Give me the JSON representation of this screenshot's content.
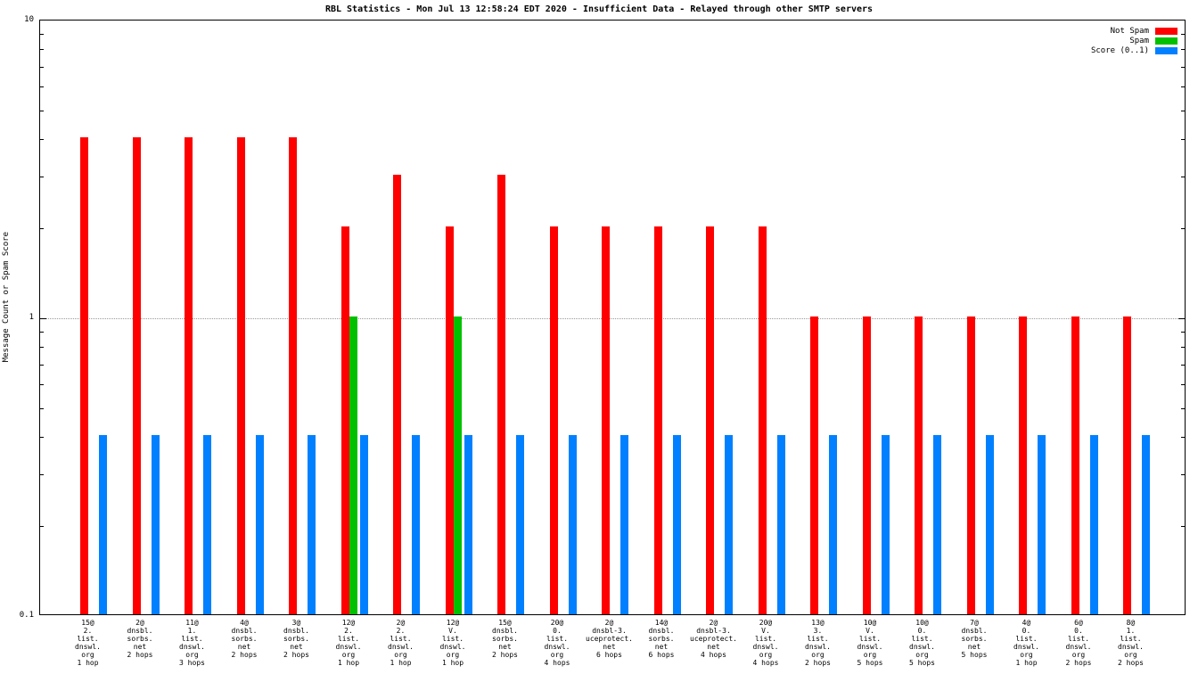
{
  "chart_data": {
    "type": "bar",
    "title": "RBL Statistics - Mon Jul 13 12:58:24 EDT 2020 - Insufficient Data - Relayed through other SMTP servers",
    "ylabel": "Message Count or Spam Score",
    "yscale": "log",
    "ylim": [
      0.1,
      10
    ],
    "yticks": [
      {
        "value": 10,
        "label": "10"
      },
      {
        "value": 1,
        "label": "1"
      },
      {
        "value": 0.1,
        "label": "0.1"
      }
    ],
    "grid_values": [
      1
    ],
    "legend": [
      {
        "label": "Not Spam",
        "color": "#ff0000",
        "series": "not_spam"
      },
      {
        "label": "Spam",
        "color": "#00c000",
        "series": "spam"
      },
      {
        "label": "Score (0..1)",
        "color": "#0080ff",
        "series": "score"
      }
    ],
    "colors": {
      "not_spam": "#ff0000",
      "spam": "#00c000",
      "score": "#0080ff"
    },
    "groups": [
      {
        "label_lines": [
          "15@",
          "2.",
          "list.",
          "dnswl.",
          "org",
          "1 hop"
        ],
        "not_spam": 4,
        "spam": 0,
        "score": 0.4
      },
      {
        "label_lines": [
          "2@",
          "dnsbl.",
          "sorbs.",
          "net",
          "2 hops"
        ],
        "not_spam": 4,
        "spam": 0,
        "score": 0.4
      },
      {
        "label_lines": [
          "11@",
          "1.",
          "list.",
          "dnswl.",
          "org",
          "3 hops"
        ],
        "not_spam": 4,
        "spam": 0,
        "score": 0.4
      },
      {
        "label_lines": [
          "4@",
          "dnsbl.",
          "sorbs.",
          "net",
          "2 hops"
        ],
        "not_spam": 4,
        "spam": 0,
        "score": 0.4
      },
      {
        "label_lines": [
          "3@",
          "dnsbl.",
          "sorbs.",
          "net",
          "2 hops"
        ],
        "not_spam": 4,
        "spam": 0,
        "score": 0.4
      },
      {
        "label_lines": [
          "12@",
          "2.",
          "list.",
          "dnswl.",
          "org",
          "1 hop"
        ],
        "not_spam": 2,
        "spam": 1,
        "score": 0.4
      },
      {
        "label_lines": [
          "2@",
          "2.",
          "list.",
          "dnswl.",
          "org",
          "1 hop"
        ],
        "not_spam": 3,
        "spam": 0,
        "score": 0.4
      },
      {
        "label_lines": [
          "12@",
          "V.",
          "list.",
          "dnswl.",
          "org",
          "1 hop"
        ],
        "not_spam": 2,
        "spam": 1,
        "score": 0.4
      },
      {
        "label_lines": [
          "15@",
          "dnsbl.",
          "sorbs.",
          "net",
          "2 hops"
        ],
        "not_spam": 3,
        "spam": 0,
        "score": 0.4
      },
      {
        "label_lines": [
          "20@",
          "0.",
          "list.",
          "dnswl.",
          "org",
          "4 hops"
        ],
        "not_spam": 2,
        "spam": 0,
        "score": 0.4
      },
      {
        "label_lines": [
          "2@",
          "dnsbl-3.",
          "uceprotect.",
          "net",
          "6 hops"
        ],
        "not_spam": 2,
        "spam": 0,
        "score": 0.4
      },
      {
        "label_lines": [
          "14@",
          "dnsbl.",
          "sorbs.",
          "net",
          "6 hops"
        ],
        "not_spam": 2,
        "spam": 0,
        "score": 0.4
      },
      {
        "label_lines": [
          "2@",
          "dnsbl-3.",
          "uceprotect.",
          "net",
          "4 hops"
        ],
        "not_spam": 2,
        "spam": 0,
        "score": 0.4
      },
      {
        "label_lines": [
          "20@",
          "V.",
          "list.",
          "dnswl.",
          "org",
          "4 hops"
        ],
        "not_spam": 2,
        "spam": 0,
        "score": 0.4
      },
      {
        "label_lines": [
          "13@",
          "3.",
          "list.",
          "dnswl.",
          "org",
          "2 hops"
        ],
        "not_spam": 1,
        "spam": 0,
        "score": 0.4
      },
      {
        "label_lines": [
          "10@",
          "V.",
          "list.",
          "dnswl.",
          "org",
          "5 hops"
        ],
        "not_spam": 1,
        "spam": 0,
        "score": 0.4
      },
      {
        "label_lines": [
          "10@",
          "0.",
          "list.",
          "dnswl.",
          "org",
          "5 hops"
        ],
        "not_spam": 1,
        "spam": 0,
        "score": 0.4
      },
      {
        "label_lines": [
          "7@",
          "dnsbl.",
          "sorbs.",
          "net",
          "5 hops"
        ],
        "not_spam": 1,
        "spam": 0,
        "score": 0.4
      },
      {
        "label_lines": [
          "4@",
          "0.",
          "list.",
          "dnswl.",
          "org",
          "1 hop"
        ],
        "not_spam": 1,
        "spam": 0,
        "score": 0.4
      },
      {
        "label_lines": [
          "6@",
          "0.",
          "list.",
          "dnswl.",
          "org",
          "2 hops"
        ],
        "not_spam": 1,
        "spam": 0,
        "score": 0.4
      },
      {
        "label_lines": [
          "8@",
          "1.",
          "list.",
          "dnswl.",
          "org",
          "2 hops"
        ],
        "not_spam": 1,
        "spam": 0,
        "score": 0.4
      }
    ]
  }
}
